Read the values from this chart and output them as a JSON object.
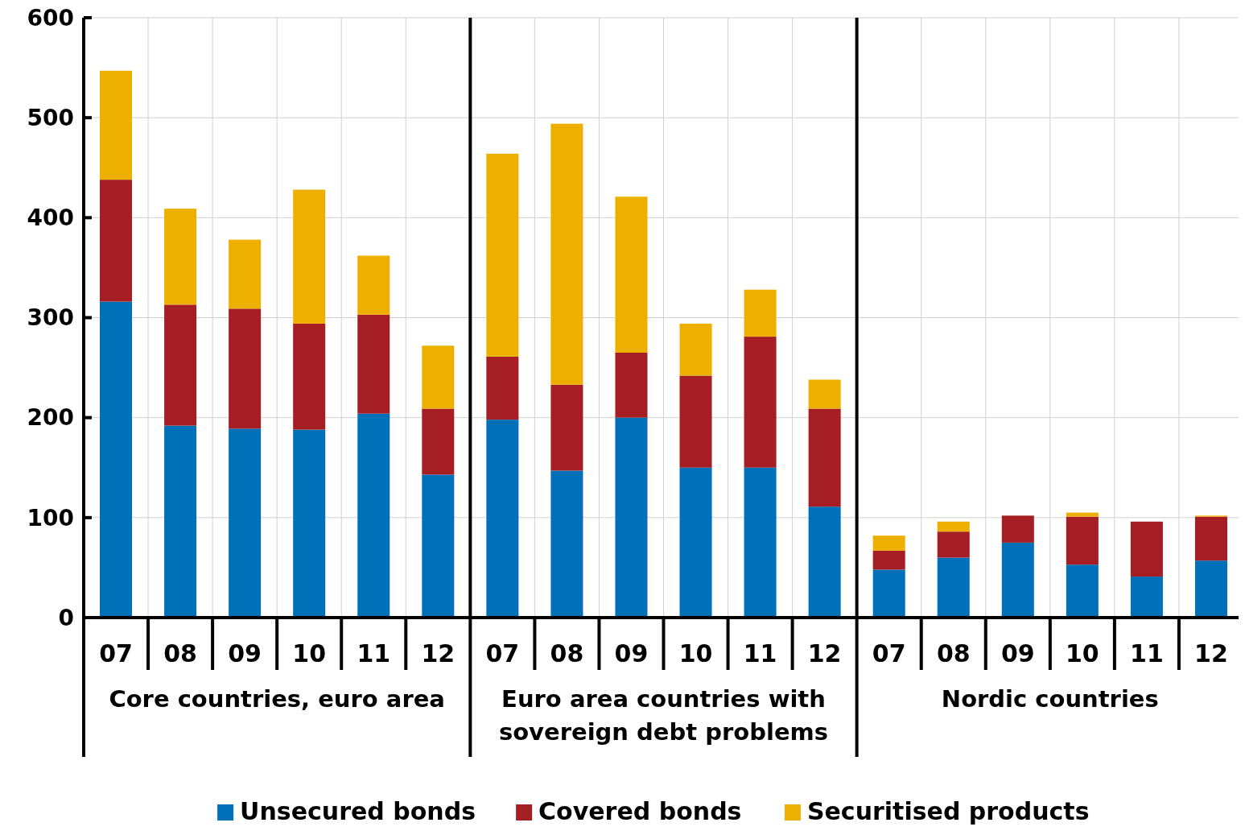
{
  "chart_data": {
    "type": "bar",
    "stacked": true,
    "categories": [
      "07",
      "08",
      "09",
      "10",
      "11",
      "12",
      "07",
      "08",
      "09",
      "10",
      "11",
      "12",
      "07",
      "08",
      "09",
      "10",
      "11",
      "12"
    ],
    "series": [
      {
        "name": "Unsecured bonds",
        "color": "#0070b8",
        "values": [
          316,
          192,
          189,
          188,
          204,
          143,
          198,
          147,
          200,
          150,
          150,
          111,
          48,
          60,
          75,
          53,
          41,
          57
        ]
      },
      {
        "name": "Covered bonds",
        "color": "#a51e23",
        "values": [
          122,
          121,
          120,
          106,
          99,
          66,
          63,
          86,
          65,
          92,
          131,
          98,
          19,
          26,
          27,
          48,
          55,
          44
        ]
      },
      {
        "name": "Securitised products",
        "color": "#edb000",
        "values": [
          109,
          96,
          69,
          134,
          59,
          63,
          203,
          261,
          156,
          52,
          47,
          29,
          15,
          10,
          0,
          4,
          0,
          1
        ]
      }
    ],
    "ylim": [
      0,
      600
    ],
    "yticks": [
      0,
      100,
      200,
      300,
      400,
      500,
      600
    ],
    "grid": true,
    "legend": "bottom",
    "annotations": [
      "Core countries, euro area",
      "Euro area countries with\nsovereign debt problems",
      "Nordic countries"
    ]
  }
}
